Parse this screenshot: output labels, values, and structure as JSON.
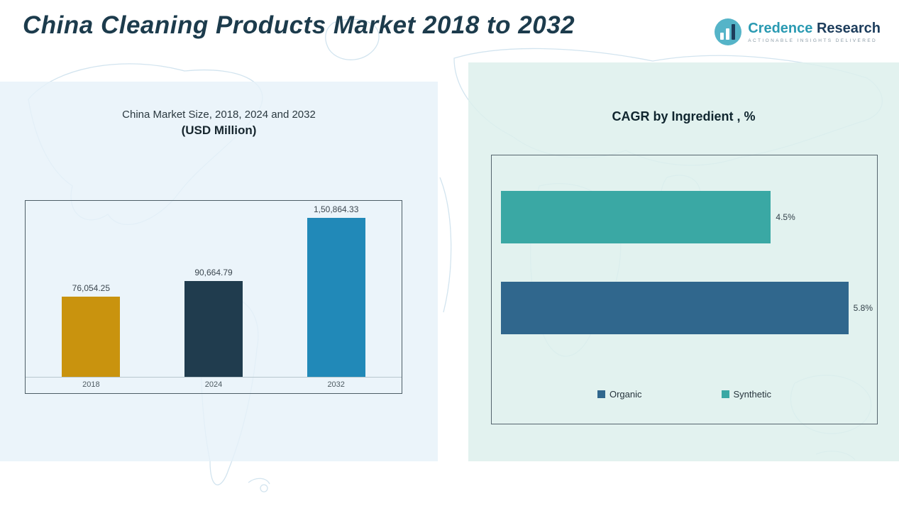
{
  "page": {
    "title": "China Cleaning Products Market 2018 to 2032"
  },
  "logo": {
    "icon": "bar-chart-circle-icon",
    "brand_primary": "Credence",
    "brand_secondary": "Research",
    "tagline": "ACTIONABLE INSIGHTS DELIVERED"
  },
  "colors": {
    "panel_left_bg": "#e6f1f9",
    "panel_right_bg": "#ddf0ec",
    "map_line": "#d2e4ef",
    "title_text": "#1c3b4c"
  },
  "chart_data": [
    {
      "type": "bar",
      "title": "China Market Size, 2018, 2024 and 2032",
      "subtitle": "(USD Million)",
      "categories": [
        "2018",
        "2024",
        "2032"
      ],
      "values": [
        76054.25,
        90664.79,
        150864.33
      ],
      "value_labels": [
        "76,054.25",
        "90,664.79",
        "1,50,864.33"
      ],
      "colors": [
        "#c9930e",
        "#203c4e",
        "#2189b8"
      ],
      "ylim": [
        0,
        160000
      ],
      "grid": false,
      "legend_position": "none"
    },
    {
      "type": "bar",
      "orientation": "horizontal",
      "title": "CAGR by Ingredient , %",
      "categories": [
        "Synthetic",
        "Organic"
      ],
      "values": [
        4.5,
        5.8
      ],
      "value_labels": [
        "4.5%",
        "5.8%"
      ],
      "colors": [
        "#3aa8a4",
        "#30678d"
      ],
      "xlim": [
        0,
        6.2
      ],
      "grid": false,
      "legend_position": "bottom",
      "legend": [
        {
          "label": "Organic",
          "color": "#30678d"
        },
        {
          "label": "Synthetic",
          "color": "#3aa8a4"
        }
      ]
    }
  ]
}
